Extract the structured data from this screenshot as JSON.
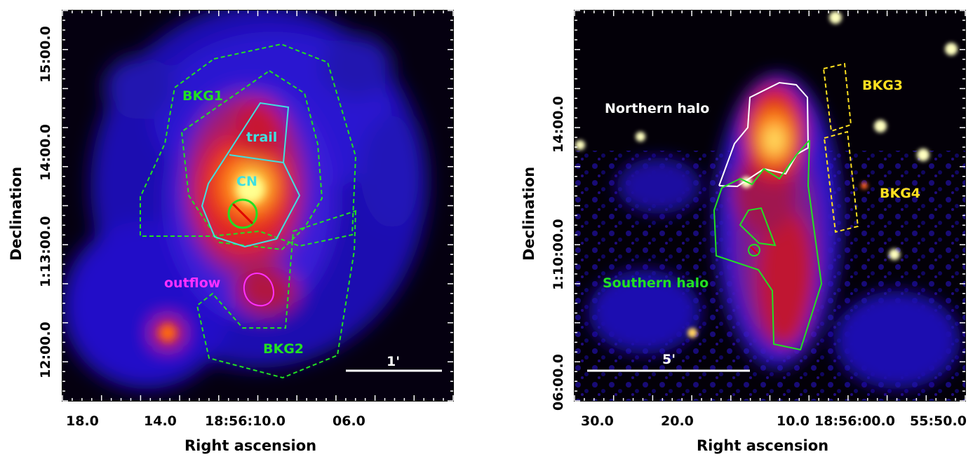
{
  "left_panel": {
    "x_ticks": [
      "18.0",
      "14.0",
      "18:56:10.0",
      "06.0"
    ],
    "y_ticks": [
      "15:00.0",
      "14:00.0",
      "1:13:00.0",
      "12:00.0"
    ],
    "xlabel": "Right ascension",
    "ylabel": "Declination",
    "scale_bar": "1'",
    "regions": {
      "bkg1": "BKG1",
      "bkg2": "BKG2",
      "trail": "trail",
      "cn": "CN",
      "outflow": "outflow"
    },
    "colors": {
      "background": "green",
      "trail": "cyan",
      "outflow": "magenta"
    }
  },
  "right_panel": {
    "x_ticks": [
      "30.0",
      "20.0",
      "10.0",
      "18:56:00.0",
      "55:50.0"
    ],
    "y_ticks": [
      "14:00.0",
      "1:10:00.0",
      "06:00.0"
    ],
    "xlabel": "Right ascension",
    "ylabel": "Declination",
    "scale_bar": "5'",
    "regions": {
      "northern": "Northern halo",
      "southern": "Southern halo",
      "bkg3": "BKG3",
      "bkg4": "BKG4"
    },
    "colors": {
      "northern": "white",
      "southern": "green",
      "bkg": "yellow"
    }
  }
}
